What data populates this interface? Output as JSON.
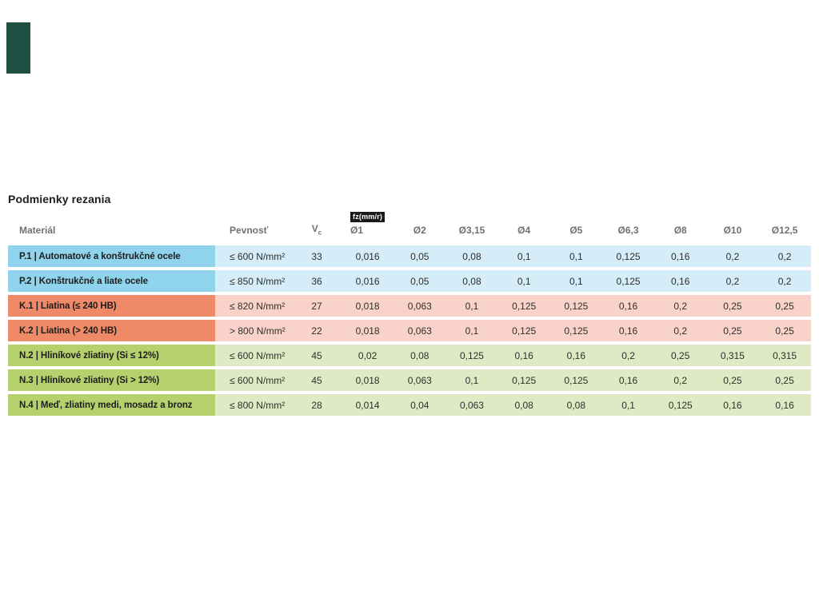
{
  "swatch": {
    "color": "#1f5043"
  },
  "title": "Podmienky rezania",
  "table": {
    "headers": {
      "material": "Materiál",
      "strength": "Pevnosť",
      "vc_main": "V",
      "vc_sub": "c",
      "fz_badge": "fz(mm/r)",
      "diameters": [
        "Ø1",
        "Ø2",
        "Ø3,15",
        "Ø4",
        "Ø5",
        "Ø6,3",
        "Ø8",
        "Ø10",
        "Ø12,5"
      ]
    },
    "group_colors": {
      "P": {
        "label_bg": "#8fd3ed",
        "row_bg": "#d4edf8"
      },
      "K": {
        "label_bg": "#ef8a68",
        "row_bg": "#f9d3c9"
      },
      "N": {
        "label_bg": "#b4d16e",
        "row_bg": "#dfeac4"
      }
    },
    "rows": [
      {
        "group": "P",
        "material": "P.1 | Automatové a konštrukčné ocele",
        "strength": "≤ 600 N/mm²",
        "vc": "33",
        "fz": [
          "0,016",
          "0,05",
          "0,08",
          "0,1",
          "0,1",
          "0,125",
          "0,16",
          "0,2",
          "0,2"
        ]
      },
      {
        "group": "P",
        "material": "P.2 | Konštrukčné a liate ocele",
        "strength": "≤ 850 N/mm²",
        "vc": "36",
        "fz": [
          "0,016",
          "0,05",
          "0,08",
          "0,1",
          "0,1",
          "0,125",
          "0,16",
          "0,2",
          "0,2"
        ]
      },
      {
        "group": "K",
        "material": "K.1 | Liatina (≤ 240 HB)",
        "strength": "≤ 820 N/mm²",
        "vc": "27",
        "fz": [
          "0,018",
          "0,063",
          "0,1",
          "0,125",
          "0,125",
          "0,16",
          "0,2",
          "0,25",
          "0,25"
        ]
      },
      {
        "group": "K",
        "material": "K.2 | Liatina (> 240 HB)",
        "strength": "> 800 N/mm²",
        "vc": "22",
        "fz": [
          "0,018",
          "0,063",
          "0,1",
          "0,125",
          "0,125",
          "0,16",
          "0,2",
          "0,25",
          "0,25"
        ]
      },
      {
        "group": "N",
        "material": "N.2 | Hliníkové zliatiny (Si ≤ 12%)",
        "strength": "≤ 600 N/mm²",
        "vc": "45",
        "fz": [
          "0,02",
          "0,08",
          "0,125",
          "0,16",
          "0,16",
          "0,2",
          "0,25",
          "0,315",
          "0,315"
        ]
      },
      {
        "group": "N",
        "material": "N.3 | Hliníkové zliatiny (Si > 12%)",
        "strength": "≤ 600 N/mm²",
        "vc": "45",
        "fz": [
          "0,018",
          "0,063",
          "0,1",
          "0,125",
          "0,125",
          "0,16",
          "0,2",
          "0,25",
          "0,25"
        ]
      },
      {
        "group": "N",
        "material": "N.4 | Meď, zliatiny medi, mosadz a bronz",
        "strength": "≤ 800 N/mm²",
        "vc": "28",
        "fz": [
          "0,014",
          "0,04",
          "0,063",
          "0,08",
          "0,08",
          "0,1",
          "0,125",
          "0,16",
          "0,16"
        ]
      }
    ]
  }
}
